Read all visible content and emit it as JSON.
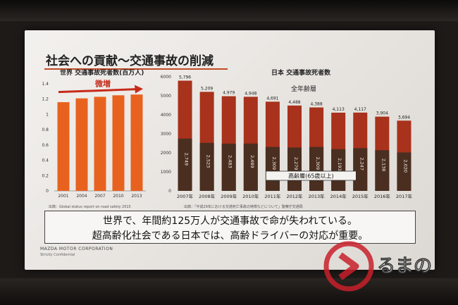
{
  "slide": {
    "title": "社会への貢献～交通事故の削減",
    "world_heading": "世界 交通事故死者数(百万人)",
    "japan_heading": "日本 交通事故死者数",
    "all_ages_label": "全年齢層",
    "increase_label": "微増",
    "elderly_label": "高齢層(65歳以上)",
    "world_source": "出典：Global status report on road safety 2015",
    "japan_source": "出典：「平成29年における交通死亡事故の特徴などについて」警察庁交通局",
    "message_line1": "世界で、年間約125万人が交通事故で命が失われている。",
    "message_line2": "超高齢化社会である日本では、高齢ドライバーの対応が重要。",
    "company_name": "MAZDA MOTOR CORPORATION",
    "confidential": "Strictly Confidential"
  },
  "watermark": {
    "logo_icon": "kuruma-news-logo-icon",
    "text": "るまの"
  },
  "colors": {
    "world_bar": "#e8621f",
    "japan_total": "#a8321c",
    "japan_elderly": "#4a2e20",
    "arrow": "#c62a1a"
  },
  "chart_data": [
    {
      "type": "bar",
      "title": "世界 交通事故死者数(百万人)",
      "categories": [
        "2001",
        "2004",
        "2007",
        "2010",
        "2013"
      ],
      "values": [
        1.16,
        1.21,
        1.23,
        1.25,
        1.26
      ],
      "yticks": [
        "0",
        "0.2",
        "0.4",
        "0.6",
        "0.8",
        "1",
        "1.2",
        "1.4"
      ],
      "ylim": [
        0,
        1.4
      ],
      "grid": false,
      "annotation": "微増"
    },
    {
      "type": "bar",
      "title": "日本 交通事故死者数",
      "categories": [
        "2007年",
        "2008年",
        "2009年",
        "2010年",
        "2011年",
        "2012年",
        "2013年",
        "2014年",
        "2015年",
        "2016年",
        "2017年"
      ],
      "series": [
        {
          "name": "全年齢層",
          "values": [
            5796,
            5209,
            4979,
            4948,
            4691,
            4488,
            4388,
            4113,
            4117,
            3904,
            3694
          ],
          "labels": [
            "5,796",
            "5,209",
            "4,979",
            "4,948",
            "4,691",
            "4,488",
            "4,388",
            "4,113",
            "4,117",
            "3,904",
            "3,694"
          ]
        },
        {
          "name": "高齢層(65歳以上)",
          "values": [
            2749,
            2523,
            2483,
            2489,
            2309,
            2279,
            2309,
            2193,
            2247,
            2138,
            2020
          ],
          "labels": [
            "2,749",
            "2,523",
            "2,483",
            "2,489",
            "2,309",
            "2,279",
            "2,309",
            "2,193",
            "2,247",
            "2,138",
            "2,020"
          ]
        }
      ],
      "yticks": [
        "0",
        "1000",
        "2000",
        "3000",
        "4000",
        "5000",
        "6000"
      ],
      "ylim": [
        0,
        6000
      ],
      "grid": false
    }
  ]
}
